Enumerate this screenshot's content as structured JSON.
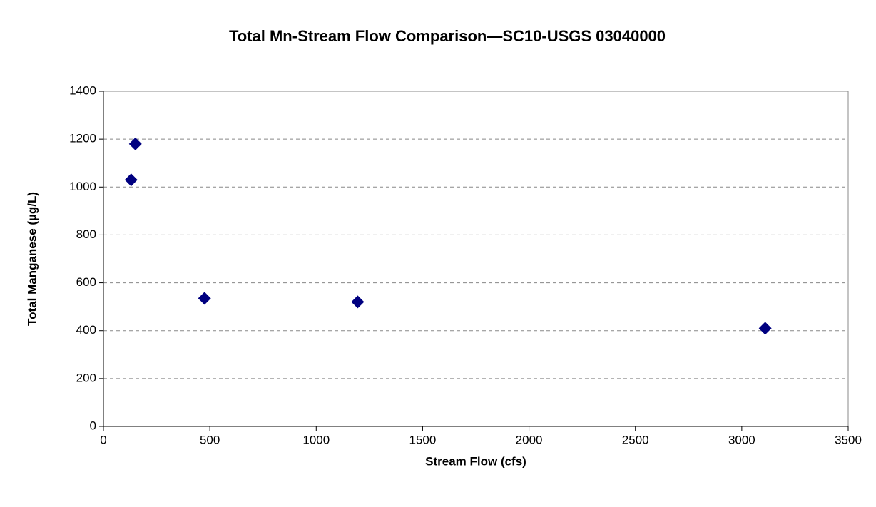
{
  "chart_data": {
    "type": "scatter",
    "title": "Total Mn-Stream Flow Comparison—SC10-USGS 03040000",
    "x_label": "Stream Flow (cfs)",
    "y_label": "Total Manganese (µg/L)",
    "x": [
      130,
      150,
      475,
      1195,
      3110
    ],
    "values": [
      1030,
      1180,
      535,
      520,
      410
    ],
    "color": "#000080",
    "xlim": [
      0,
      3500
    ],
    "xticks": [
      0,
      500,
      1000,
      1500,
      2000,
      2500,
      3000,
      3500
    ],
    "ylim": [
      0,
      1400
    ],
    "yticks": [
      0,
      200,
      400,
      600,
      800,
      1000,
      1200,
      1400
    ],
    "grid": true
  }
}
